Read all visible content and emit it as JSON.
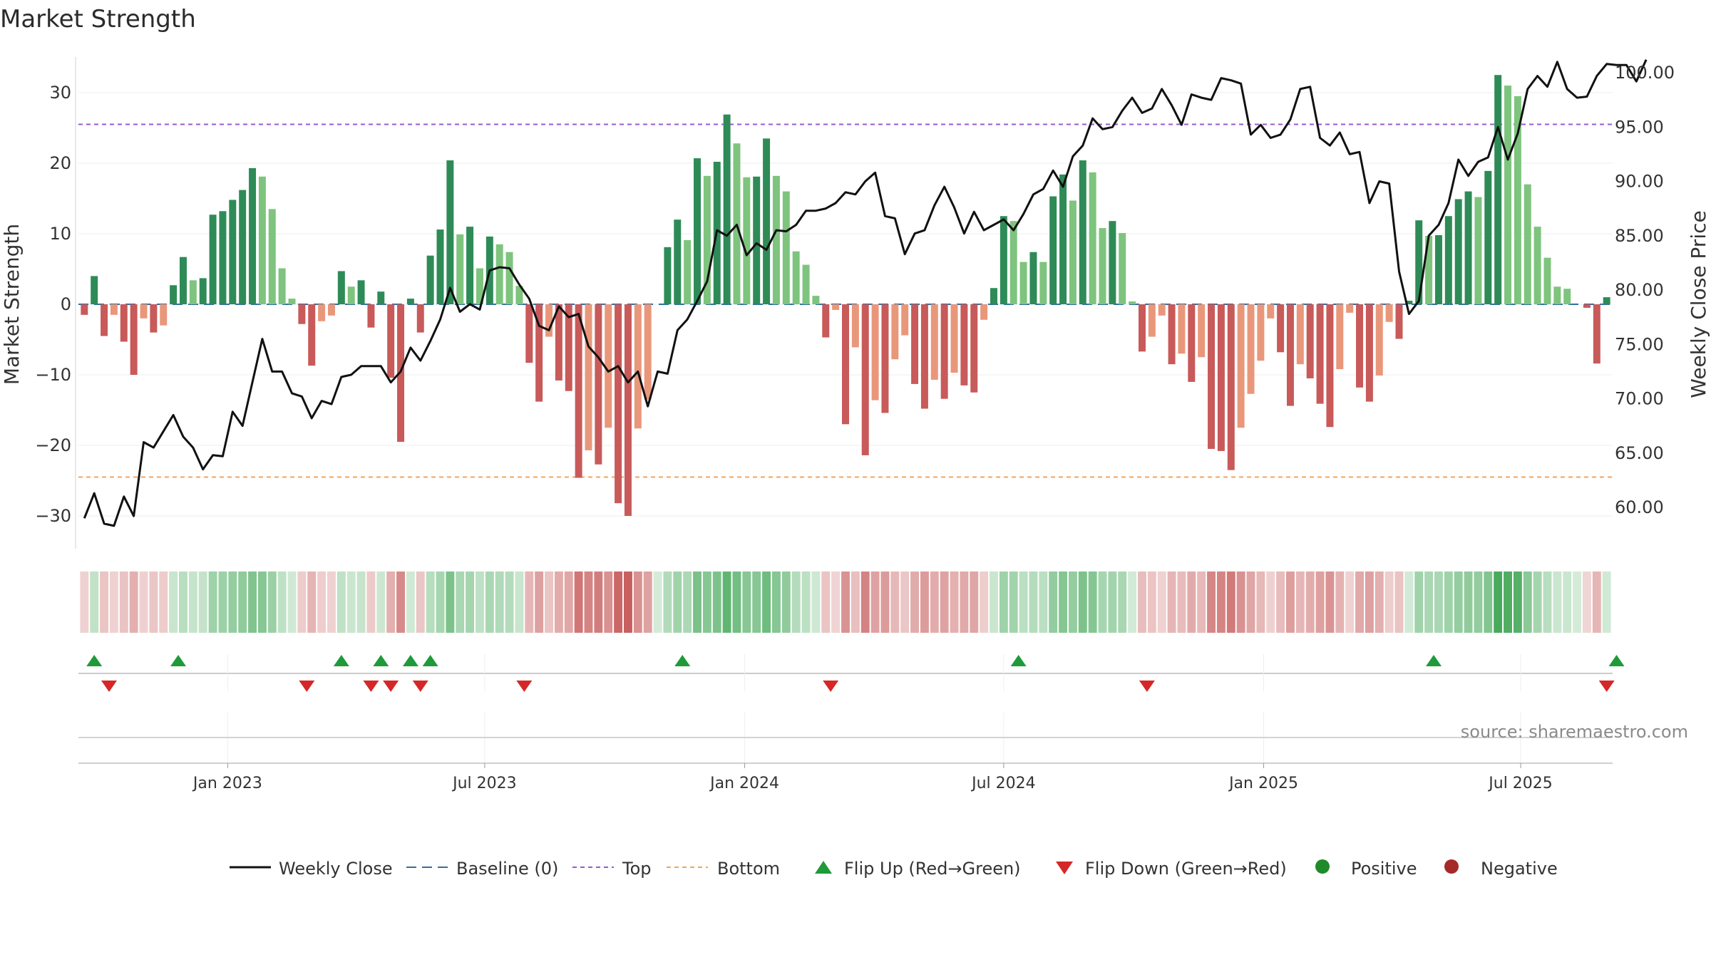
{
  "chart_data": {
    "type": "bar+line",
    "title": "Market Strength",
    "ylabel_left": "Market Strength",
    "ylabel_right": "Weekly Close Price",
    "ylim_left": [
      -35,
      36
    ],
    "ylim_right": [
      56.5,
      102
    ],
    "yticks_left": [
      30,
      20,
      10,
      0,
      -10,
      -20,
      -30
    ],
    "ytick_labels_left": [
      "30",
      "20",
      "10",
      "0",
      "−10",
      "−20",
      "−30"
    ],
    "yticks_right": [
      100,
      95,
      90,
      85,
      80,
      75,
      70,
      65,
      60
    ],
    "ytick_labels_right": [
      "100.00",
      "95.00",
      "90.00",
      "85.00",
      "80.00",
      "75.00",
      "70.00",
      "65.00",
      "60.00"
    ],
    "x_month_ticks": [
      {
        "label": "Jan 2023",
        "week": 14.5
      },
      {
        "label": "Jul 2023",
        "week": 40.5
      },
      {
        "label": "Jan 2024",
        "week": 66.8
      },
      {
        "label": "Jul 2024",
        "week": 93
      },
      {
        "label": "Jan 2025",
        "week": 119.3
      },
      {
        "label": "Jul 2025",
        "week": 145.3
      }
    ],
    "top_threshold": 25.5,
    "bottom_threshold": -24.5,
    "strength": [
      -1.5,
      4,
      -4.5,
      -1.5,
      -5.3,
      -10,
      -2,
      -4,
      -3,
      2.7,
      6.7,
      3.4,
      3.7,
      12.7,
      13.2,
      14.8,
      16.2,
      19.3,
      18.1,
      13.5,
      5.1,
      0.8,
      -2.8,
      -8.7,
      -2.4,
      -1.6,
      4.7,
      2.5,
      3.4,
      -3.3,
      1.8,
      -10.4,
      -19.5,
      0.8,
      -4,
      6.9,
      10.6,
      20.4,
      9.9,
      11,
      5.1,
      9.6,
      8.5,
      7.4,
      2.6,
      -8.3,
      -13.8,
      -4.6,
      -10.8,
      -12.3,
      -24.6,
      -20.7,
      -22.7,
      -17.5,
      -28.2,
      -30,
      -17.6,
      -13.5,
      0,
      8.1,
      12,
      9.1,
      20.7,
      18.2,
      20.2,
      26.9,
      22.8,
      18,
      18.1,
      23.5,
      18.2,
      16,
      7.5,
      5.6,
      1.2,
      -4.7,
      -0.8,
      -17,
      -6.1,
      -21.4,
      -13.6,
      -15.4,
      -7.8,
      -4.4,
      -11.3,
      -14.8,
      -10.7,
      -13.4,
      -9.7,
      -11.5,
      -12.5,
      -2.2,
      2.3,
      12.5,
      11.8,
      6,
      7.4,
      6,
      15.3,
      18.4,
      14.7,
      20.4,
      18.7,
      10.8,
      11.8,
      10.1,
      0.4,
      -6.7,
      -4.6,
      -1.6,
      -8.5,
      -7,
      -11,
      -7.5,
      -20.5,
      -20.8,
      -23.5,
      -17.5,
      -12.7,
      -8,
      -2,
      -6.8,
      -14.4,
      -8.5,
      -10.5,
      -14.1,
      -17.4,
      -9.2,
      -1.2,
      -11.8,
      -13.8,
      -10.1,
      -2.5,
      -4.9,
      0.5,
      11.9,
      9.7,
      9.8,
      12.5,
      14.9,
      16,
      15.2,
      18.9,
      32.5,
      31,
      29.5,
      17,
      11,
      6.6,
      2.5,
      2.2,
      0,
      -0.5,
      -8.4,
      1
    ],
    "close": [
      59,
      61.3,
      58.5,
      58.3,
      61,
      59.2,
      66,
      65.5,
      67,
      68.5,
      66.5,
      65.5,
      63.5,
      64.8,
      64.7,
      68.8,
      67.5,
      71.5,
      75.5,
      72.5,
      72.5,
      70.5,
      70.2,
      68.2,
      69.8,
      69.5,
      72,
      72.2,
      73,
      73,
      73,
      71.5,
      72.5,
      74.7,
      73.5,
      75.3,
      77.3,
      80.2,
      78,
      78.7,
      78.2,
      81.8,
      82.1,
      82,
      80.5,
      79.2,
      76.7,
      76.3,
      78.5,
      77.5,
      77.8,
      74.8,
      73.8,
      72.5,
      73,
      71.5,
      72.5,
      69.3,
      72.5,
      72.3,
      76.3,
      77.3,
      79,
      80.8,
      85.5,
      85,
      86,
      83.2,
      84.3,
      83.7,
      85.5,
      85.4,
      86,
      87.3,
      87.3,
      87.5,
      88,
      89,
      88.8,
      90,
      90.8,
      86.8,
      86.6,
      83.3,
      85.2,
      85.5,
      87.8,
      89.5,
      87.6,
      85.2,
      87.2,
      85.5,
      86,
      86.5,
      85.5,
      87,
      88.8,
      89.3,
      91,
      89.5,
      92.3,
      93.3,
      95.8,
      94.8,
      95,
      96.5,
      97.7,
      96.3,
      96.7,
      98.5,
      97,
      95.2,
      98,
      97.7,
      97.5,
      99.5,
      99.3,
      99,
      94.3,
      95.2,
      94,
      94.3,
      95.7,
      98.5,
      98.7,
      94,
      93.3,
      94.5,
      92.5,
      92.7,
      88,
      90,
      89.8,
      81.7,
      77.8,
      79,
      85,
      86,
      88,
      92,
      90.5,
      91.8,
      92.2,
      95,
      92,
      94.4,
      98.5,
      99.7,
      98.7,
      101,
      98.5,
      97.7,
      97.8,
      99.7,
      100.8,
      100.7,
      100.7,
      99.2,
      101.2
    ],
    "first_bar_week": 0.5,
    "markers_up": [
      1,
      9.5,
      26,
      30,
      33,
      35,
      60.5,
      94.5,
      136.5,
      155
    ],
    "markers_down": [
      2.5,
      22.5,
      29,
      31,
      34,
      44.5,
      75.5,
      107.5,
      154
    ],
    "legend": [
      {
        "key": "line",
        "label": "Weekly Close"
      },
      {
        "key": "baseline",
        "label": "Baseline (0)"
      },
      {
        "key": "top",
        "label": "Top"
      },
      {
        "key": "bottom",
        "label": "Bottom"
      },
      {
        "key": "flipup",
        "label": "Flip Up (Red→Green)"
      },
      {
        "key": "flipdown",
        "label": "Flip Down (Green→Red)"
      },
      {
        "key": "positive",
        "label": "Positive"
      },
      {
        "key": "negative",
        "label": "Negative"
      }
    ],
    "source": "source: sharemaestro.com"
  },
  "colors": {
    "pos_strong": "#2e8b57",
    "pos_light": "#7ec47e",
    "neg_strong": "#c85a5a",
    "neg_light": "#e9977b",
    "line": "#111111",
    "baseline": "#2f6fa6",
    "top": "#9b59d0",
    "bottom": "#f0a560",
    "flip_up": "#1f9a3a",
    "flip_down": "#d62728",
    "positive_dot": "#1f8a2a",
    "negative_dot": "#a52a2a"
  }
}
